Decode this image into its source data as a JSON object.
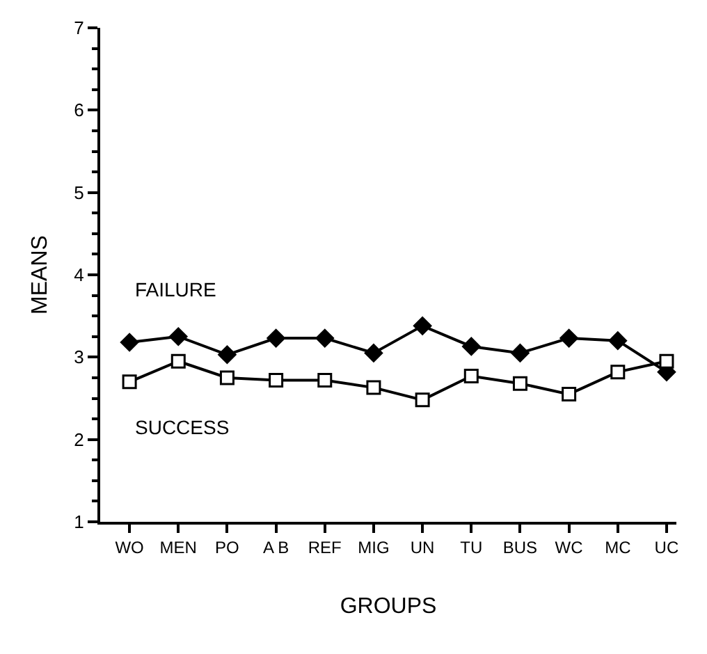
{
  "chart_data": {
    "type": "line",
    "xlabel": "GROUPS",
    "ylabel": "MEANS",
    "categories": [
      "WO",
      "MEN",
      "PO",
      "A B",
      "REF",
      "MIG",
      "UN",
      "TU",
      "BUS",
      "WC",
      "MC",
      "UC"
    ],
    "series": [
      {
        "name": "FAILURE",
        "color": "#000000",
        "marker": "diamond",
        "values": [
          3.18,
          3.25,
          3.03,
          3.23,
          3.23,
          3.05,
          3.38,
          3.13,
          3.05,
          3.23,
          3.2,
          2.82
        ]
      },
      {
        "name": "SUCCESS",
        "color": "#000000",
        "marker": "square",
        "values": [
          2.7,
          2.95,
          2.75,
          2.72,
          2.72,
          2.63,
          2.48,
          2.77,
          2.68,
          2.55,
          2.82,
          2.95
        ]
      }
    ],
    "ylim": [
      1,
      7
    ],
    "yticks": [
      1,
      2,
      3,
      4,
      5,
      6,
      7
    ],
    "legend": false,
    "line_style": "solid"
  }
}
